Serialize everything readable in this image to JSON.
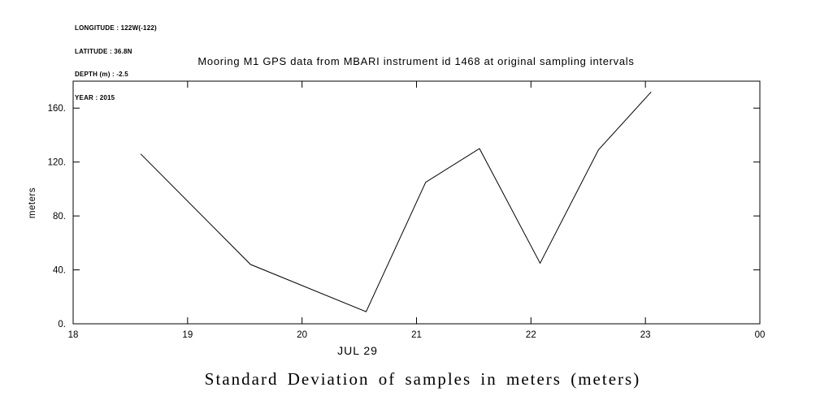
{
  "metadata": {
    "lines": [
      "LONGITUDE : 122W(-122)",
      "LATITUDE : 36.8N",
      "DEPTH (m) : -2.5",
      "YEAR : 2015"
    ]
  },
  "caption": "Standard Deviation of samples in meters (meters)",
  "chart_data": {
    "type": "line",
    "title": "Mooring M1 GPS data from MBARI instrument id 1468 at original sampling intervals",
    "xlabel": "JUL 29",
    "ylabel": "meters",
    "xlim": [
      18,
      24
    ],
    "ylim": [
      0,
      180
    ],
    "x": [
      18.59,
      19.55,
      20.56,
      21.08,
      21.55,
      22.08,
      22.59,
      23.05
    ],
    "values": [
      126,
      44,
      9,
      105,
      130,
      45,
      129,
      172
    ],
    "series_name": "standard-deviation-of-samples",
    "x_ticks": [
      {
        "value": 18,
        "label": "18"
      },
      {
        "value": 19,
        "label": "19"
      },
      {
        "value": 20,
        "label": "20"
      },
      {
        "value": 21,
        "label": "21"
      },
      {
        "value": 22,
        "label": "22"
      },
      {
        "value": 23,
        "label": "23"
      },
      {
        "value": 24,
        "label": "00"
      }
    ],
    "y_ticks": [
      {
        "value": 0,
        "label": "0."
      },
      {
        "value": 40,
        "label": "40."
      },
      {
        "value": 80,
        "label": "80."
      },
      {
        "value": 120,
        "label": "120."
      },
      {
        "value": 160,
        "label": "160."
      }
    ],
    "grid": false,
    "legend_position": "none",
    "line_color": "#000000",
    "axis_color": "#000000",
    "background_color": "#ffffff"
  }
}
